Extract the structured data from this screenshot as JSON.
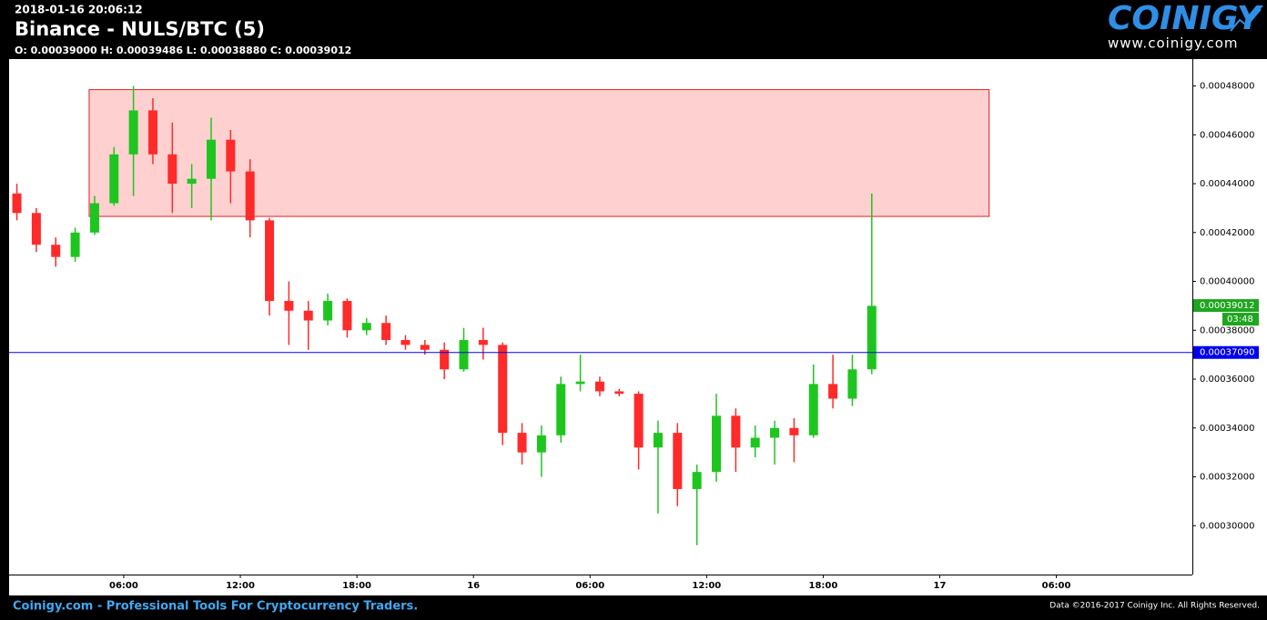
{
  "header": {
    "timestamp": "2018-01-16 20:06:12",
    "ohlc": "O: 0.00039000 H: 0.00039486 L: 0.00038880 C: 0.00039012",
    "logo": "COINIGY",
    "url": "www.coinigy.com"
  },
  "footer": {
    "tagline": "Coinigy.com - Professional Tools For Cryptocurrency Traders.",
    "copyright": "Data ©2016-2017 Coinigy Inc. All Rights Reserved."
  },
  "chart_data": {
    "type": "candlestick",
    "title": "Binance - NULS/BTC (5)",
    "up_color": "#1fc51f",
    "down_color": "#ff2a2a",
    "xlim": [
      0.1,
      61
    ],
    "ylim": [
      0.00028,
      0.000491
    ],
    "xticks": [
      {
        "value": 6,
        "label": "06:00"
      },
      {
        "value": 12,
        "label": "12:00"
      },
      {
        "value": 18,
        "label": "18:00"
      },
      {
        "value": 24,
        "label": "16"
      },
      {
        "value": 30,
        "label": "06:00"
      },
      {
        "value": 36,
        "label": "12:00"
      },
      {
        "value": 42,
        "label": "18:00"
      },
      {
        "value": 48,
        "label": "17"
      },
      {
        "value": 54,
        "label": "06:00"
      }
    ],
    "yticks": [
      {
        "value": 0.0003,
        "label": "0.00030000"
      },
      {
        "value": 0.00032,
        "label": "0.00032000"
      },
      {
        "value": 0.00034,
        "label": "0.00034000"
      },
      {
        "value": 0.00036,
        "label": "0.00036000"
      },
      {
        "value": 0.00038,
        "label": "0.00038000"
      },
      {
        "value": 0.0004,
        "label": "0.00040000"
      },
      {
        "value": 0.00042,
        "label": "0.00042000"
      },
      {
        "value": 0.00044,
        "label": "0.00044000"
      },
      {
        "value": 0.00046,
        "label": "0.00046000"
      },
      {
        "value": 0.00048,
        "label": "0.00048000"
      }
    ],
    "x": [
      0.5,
      1.5,
      2.5,
      3.5,
      4.5,
      5.5,
      6.5,
      7.5,
      8.5,
      9.5,
      10.5,
      11.5,
      12.5,
      13.5,
      14.5,
      15.5,
      16.5,
      17.5,
      18.5,
      19.5,
      20.5,
      21.5,
      22.5,
      23.5,
      24.5,
      25.5,
      26.5,
      27.5,
      28.5,
      29.5,
      30.5,
      31.5,
      32.5,
      33.5,
      34.5,
      35.5,
      36.5,
      37.5,
      38.5,
      39.5,
      40.5,
      41.5,
      42.5,
      43.5,
      44.5
    ],
    "open": [
      0.000436,
      0.000428,
      0.000415,
      0.00041,
      0.00042,
      0.000432,
      0.000452,
      0.00047,
      0.000452,
      0.00044,
      0.000442,
      0.000458,
      0.000445,
      0.000425,
      0.000392,
      0.000388,
      0.000384,
      0.000392,
      0.00038,
      0.000383,
      0.000376,
      0.000374,
      0.000372,
      0.000364,
      0.000376,
      0.000374,
      0.000338,
      0.00033,
      0.000337,
      0.000358,
      0.000359,
      0.000355,
      0.000354,
      0.000332,
      0.000338,
      0.000315,
      0.000322,
      0.000345,
      0.000332,
      0.000336,
      0.00034,
      0.000337,
      0.000358,
      0.000352,
      0.000364
    ],
    "high": [
      0.00044,
      0.00043,
      0.000418,
      0.000422,
      0.000435,
      0.000455,
      0.00048,
      0.000475,
      0.000465,
      0.000448,
      0.000467,
      0.000462,
      0.00045,
      0.000426,
      0.0004,
      0.000392,
      0.000395,
      0.000393,
      0.000385,
      0.000386,
      0.000378,
      0.000376,
      0.000375,
      0.000381,
      0.000381,
      0.000375,
      0.000342,
      0.000341,
      0.000361,
      0.00037,
      0.000361,
      0.000356,
      0.000355,
      0.000343,
      0.000342,
      0.000325,
      0.000354,
      0.000348,
      0.000341,
      0.000343,
      0.000344,
      0.000366,
      0.00037,
      0.00037,
      0.000436
    ],
    "low": [
      0.000425,
      0.000412,
      0.000406,
      0.000408,
      0.000419,
      0.000431,
      0.000435,
      0.000448,
      0.000428,
      0.00043,
      0.000425,
      0.000432,
      0.000418,
      0.000386,
      0.000374,
      0.000372,
      0.000382,
      0.000377,
      0.000378,
      0.000374,
      0.000372,
      0.00037,
      0.00036,
      0.000363,
      0.000368,
      0.000333,
      0.000325,
      0.00032,
      0.000334,
      0.000355,
      0.000353,
      0.000353,
      0.000323,
      0.000305,
      0.000308,
      0.000292,
      0.000318,
      0.000322,
      0.000328,
      0.000325,
      0.000326,
      0.000336,
      0.000348,
      0.000349,
      0.000362
    ],
    "close": [
      0.000428,
      0.000415,
      0.00041,
      0.00042,
      0.000432,
      0.000452,
      0.00047,
      0.000452,
      0.00044,
      0.000442,
      0.000458,
      0.000445,
      0.000425,
      0.000392,
      0.000388,
      0.000384,
      0.000392,
      0.00038,
      0.000383,
      0.000376,
      0.000374,
      0.000372,
      0.000364,
      0.000376,
      0.000374,
      0.000338,
      0.00033,
      0.000337,
      0.000358,
      0.000359,
      0.000355,
      0.000354,
      0.000332,
      0.000338,
      0.000315,
      0.000322,
      0.000345,
      0.000332,
      0.000336,
      0.00034,
      0.000337,
      0.000358,
      0.000352,
      0.000364,
      0.00039
    ],
    "zone": {
      "x": [
        4.22,
        50.54
      ],
      "y": [
        0.0004266,
        0.0004785
      ],
      "color": "#ffd0d0",
      "border": "#e02020"
    },
    "price_line": {
      "value": 0.0003709,
      "label": "0.00037090",
      "color": "#0000ee"
    },
    "last_price": {
      "value": 0.00039012,
      "label": "0.00039012",
      "timer": "03:48",
      "color": "#1fa51f"
    }
  }
}
